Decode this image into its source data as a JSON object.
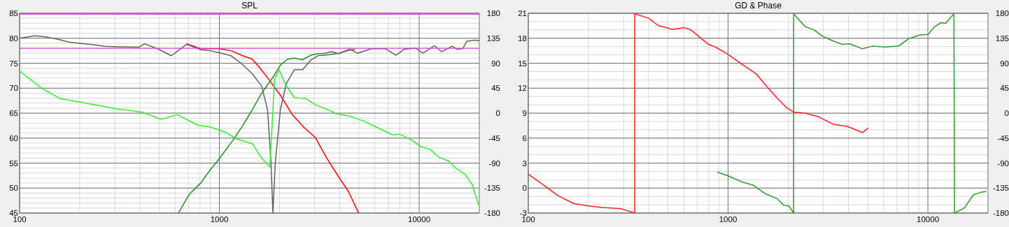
{
  "chart_data": [
    {
      "type": "line",
      "title": "SPL",
      "log": "x",
      "grid": true,
      "xlim": [
        100,
        20000
      ],
      "xticks": [
        100,
        1000,
        10000
      ],
      "ylim": [
        45,
        85
      ],
      "yticks": [
        45,
        50,
        55,
        60,
        65,
        70,
        75,
        80,
        85
      ],
      "y2lim": [
        -180,
        180
      ],
      "y2ticks": [
        -180,
        -135,
        -90,
        -45,
        0,
        45,
        90,
        135,
        180
      ],
      "ref_lines": [
        {
          "axis": "y",
          "value": 84.8,
          "color": "#e040e0"
        },
        {
          "axis": "y",
          "value": 78,
          "color": "#e040e0"
        }
      ],
      "series": [
        {
          "color": "#ff0000",
          "x": [
            686,
            806,
            898,
            1000,
            1144,
            1309,
            1462,
            1585,
            1765,
            2020,
            2310,
            2644,
            3025,
            3461,
            3960,
            4410,
            4980
          ],
          "values": [
            78.9,
            77.9,
            77.9,
            77.9,
            77.5,
            76.5,
            75.8,
            74.2,
            71.8,
            68.6,
            64.8,
            62.2,
            60.1,
            55.9,
            52.2,
            49.4,
            45
          ]
        },
        {
          "color": "#228b22",
          "x": [
            624,
            705,
            806,
            898,
            1000,
            1175,
            1309,
            1462,
            1628,
            1863,
            2020,
            2190,
            2374,
            2609,
            2867,
            3107,
            3370,
            3652,
            3960,
            4410,
            4780
          ],
          "values": [
            45,
            48.7,
            51.0,
            53.6,
            55.9,
            59.7,
            62.5,
            65.7,
            69,
            72.3,
            74.6,
            75.8,
            76.0,
            75.7,
            76.6,
            76.9,
            77.0,
            77.3,
            76.9,
            77.7,
            77.7
          ]
        },
        {
          "color": "#606060",
          "x": [
            100,
            119,
            129,
            152,
            178,
            234,
            267,
            306,
            395,
            422,
            497,
            575,
            686,
            806,
            898,
            1000,
            1144,
            1274,
            1462,
            1628,
            1742,
            1813,
            1853,
            1904,
            2020,
            2160,
            2374,
            2609,
            2867,
            3107,
            3555,
            3960,
            4530,
            4910,
            5773,
            6785,
            7660,
            8419,
            9630,
            10440,
            11950,
            12950,
            14620,
            15430,
            16500,
            17320,
            18880,
            20000
          ],
          "values": [
            80.0,
            80.5,
            80.4,
            79.9,
            79.2,
            78.7,
            78.4,
            78.3,
            78.2,
            78.9,
            77.8,
            76.5,
            78.8,
            77.7,
            77.5,
            77.1,
            76.5,
            75.1,
            72.9,
            70.4,
            65.7,
            55,
            45,
            55,
            65.7,
            70.9,
            73.7,
            73.7,
            75.6,
            76.5,
            76.7,
            77.0,
            77.7,
            77.0,
            77.9,
            77.9,
            76.6,
            77.8,
            78.0,
            77.0,
            78.5,
            77.3,
            78.4,
            77.8,
            77.9,
            79.4,
            79.6,
            79.5
          ]
        },
        {
          "color": "#33ee33",
          "axis": "y2",
          "x": [
            100,
            129,
            160,
            199,
            306,
            411,
            510,
            616,
            785,
            898,
            1084,
            1208,
            1462,
            1628,
            1789,
            1863,
            1888,
            1993,
            2132,
            2374,
            2716,
            3025,
            3461,
            3855,
            4530,
            5325,
            6258,
            7355,
            7976,
            9127,
            10160,
            11320,
            12610,
            14040,
            15220,
            16950,
            18380,
            19920
          ],
          "values": [
            76,
            45,
            26,
            20,
            8,
            2,
            -11,
            -3,
            -22,
            -25,
            -35,
            -46,
            -55,
            -81,
            -97,
            20,
            61,
            78,
            53,
            28,
            26,
            15,
            7,
            -1,
            -6,
            -15,
            -27,
            -39,
            -38,
            -48,
            -60,
            -65,
            -80,
            -86,
            -99,
            -110,
            -128,
            -167
          ]
        }
      ]
    },
    {
      "type": "line",
      "title": "GD & Phase",
      "log": "x",
      "grid": true,
      "xlim": [
        100,
        20000
      ],
      "xticks": [
        100,
        1000,
        10000
      ],
      "ylim": [
        -3,
        21
      ],
      "yticks": [
        -3,
        0,
        3,
        6,
        9,
        12,
        15,
        18,
        21
      ],
      "y2lim": [
        -180,
        180
      ],
      "y2ticks": [
        -180,
        -135,
        -90,
        -45,
        0,
        45,
        90,
        135,
        180
      ],
      "series": [
        {
          "color": "#ff2020",
          "axis": "y2",
          "x": [
            100,
            122,
            140,
            169,
            199,
            234,
            290,
            341,
            341,
            401,
            447,
            526,
            602,
            652,
            790,
            877,
            1000,
            1175,
            1381,
            1580,
            1760,
            1960,
            2126,
            2432,
            2858,
            3360,
            3950,
            4705,
            5033
          ],
          "values": [
            -110,
            -132,
            -148,
            -163,
            -167,
            -170,
            -172,
            -180,
            179,
            171,
            158,
            151,
            154,
            150,
            125,
            118,
            106,
            88,
            71,
            46,
            27,
            10,
            2,
            0,
            -7,
            -20,
            -24,
            -35,
            -27
          ]
        },
        {
          "color": "#2e9a2e",
          "axis": "y2",
          "x": [
            883,
            1000,
            1175,
            1340,
            1530,
            1760,
            1900,
            2010,
            2130,
            2130,
            2430,
            2700,
            2960,
            3360,
            3740,
            4060,
            4705,
            5320,
            6090,
            7160,
            7980,
            9140,
            10040,
            10740,
            11640,
            12290,
            13500,
            13600,
            15220,
            16930,
            18360,
            19620
          ],
          "values": [
            -106,
            -113,
            -124,
            -130,
            -145,
            -154,
            -166,
            -167,
            -180,
            179,
            156,
            150,
            139,
            130,
            124,
            125,
            116,
            121,
            119,
            121,
            134,
            141,
            142,
            155,
            163,
            162,
            179,
            -180,
            -171,
            -147,
            -143,
            -141
          ]
        }
      ]
    }
  ]
}
